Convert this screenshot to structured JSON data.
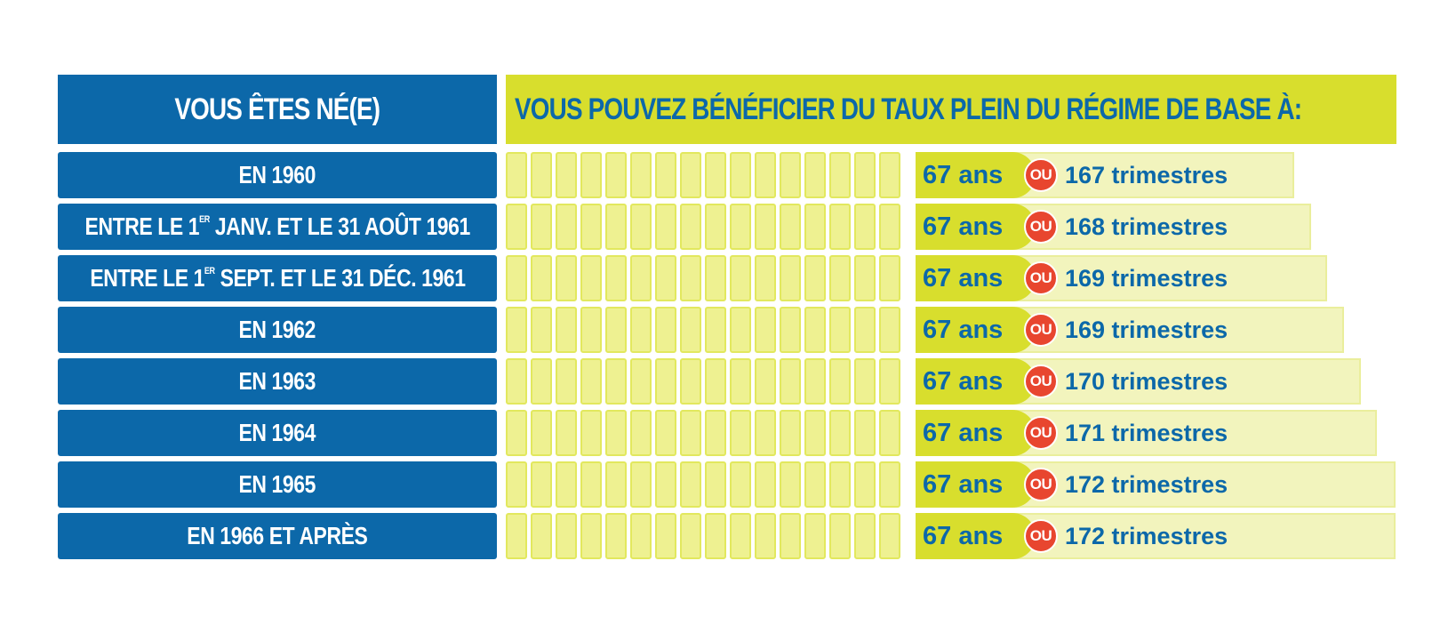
{
  "header": {
    "left_title": "VOUS ÊTES NÉ(E)",
    "right_title": "VOUS POUVEZ BÉNÉFICIER DU TAUX PLEIN DU RÉGIME DE BASE À:"
  },
  "connector": "OU",
  "rows": [
    {
      "label_pre": "EN 1960",
      "label_sup": "",
      "label_post": "",
      "age": "67 ans",
      "trimestres": "167 trimestres"
    },
    {
      "label_pre": "ENTRE LE 1",
      "label_sup": "ER",
      "label_post": " JANV. ET LE 31 AOÛT 1961",
      "age": "67 ans",
      "trimestres": "168 trimestres"
    },
    {
      "label_pre": "ENTRE LE 1",
      "label_sup": "ER",
      "label_post": " SEPT. ET LE 31 DÉC. 1961",
      "age": "67 ans",
      "trimestres": "169 trimestres"
    },
    {
      "label_pre": "EN 1962",
      "label_sup": "",
      "label_post": "",
      "age": "67 ans",
      "trimestres": "169 trimestres"
    },
    {
      "label_pre": "EN 1963",
      "label_sup": "",
      "label_post": "",
      "age": "67 ans",
      "trimestres": "170 trimestres"
    },
    {
      "label_pre": "EN 1964",
      "label_sup": "",
      "label_post": "",
      "age": "67 ans",
      "trimestres": "171 trimestres"
    },
    {
      "label_pre": "EN 1965",
      "label_sup": "",
      "label_post": "",
      "age": "67 ans",
      "trimestres": "172 trimestres"
    },
    {
      "label_pre": "EN 1966 ET APRÈS",
      "label_sup": "",
      "label_post": "",
      "age": "67 ans",
      "trimestres": "172 trimestres"
    }
  ]
}
